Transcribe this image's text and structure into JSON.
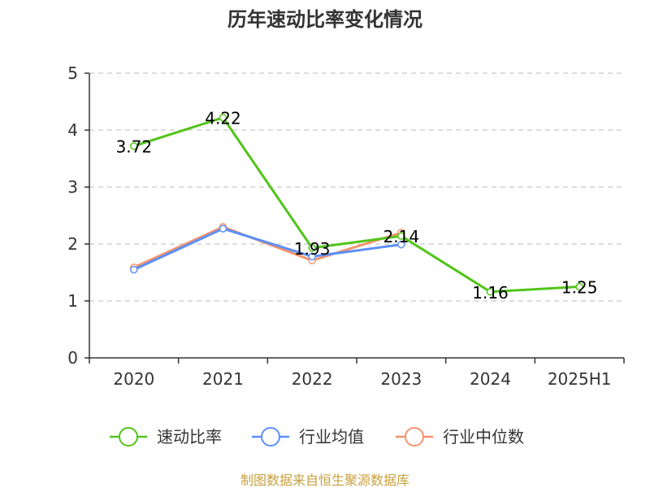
{
  "chart_data": {
    "type": "line",
    "title": "历年速动比率变化情况",
    "categories": [
      "2020",
      "2021",
      "2022",
      "2023",
      "2024",
      "2025H1"
    ],
    "ylim": [
      0,
      5
    ],
    "yticks": [
      0,
      1,
      2,
      3,
      4,
      5
    ],
    "grid": true,
    "legend_position": "bottom",
    "series": [
      {
        "name": "速动比率",
        "color": "#52c41a",
        "values": [
          3.72,
          4.22,
          1.93,
          2.14,
          1.16,
          1.25
        ],
        "labels": [
          "3.72",
          "4.22",
          "1.93",
          "2.14",
          "1.16",
          "1.25"
        ]
      },
      {
        "name": "行业均值",
        "color": "#5b8ff9",
        "values": [
          1.55,
          2.27,
          1.78,
          1.99,
          null,
          null
        ]
      },
      {
        "name": "行业中位数",
        "color": "#f6936b",
        "values": [
          1.59,
          2.3,
          1.71,
          2.2,
          null,
          null
        ]
      }
    ]
  },
  "source": "制图数据来自恒生聚源数据库"
}
